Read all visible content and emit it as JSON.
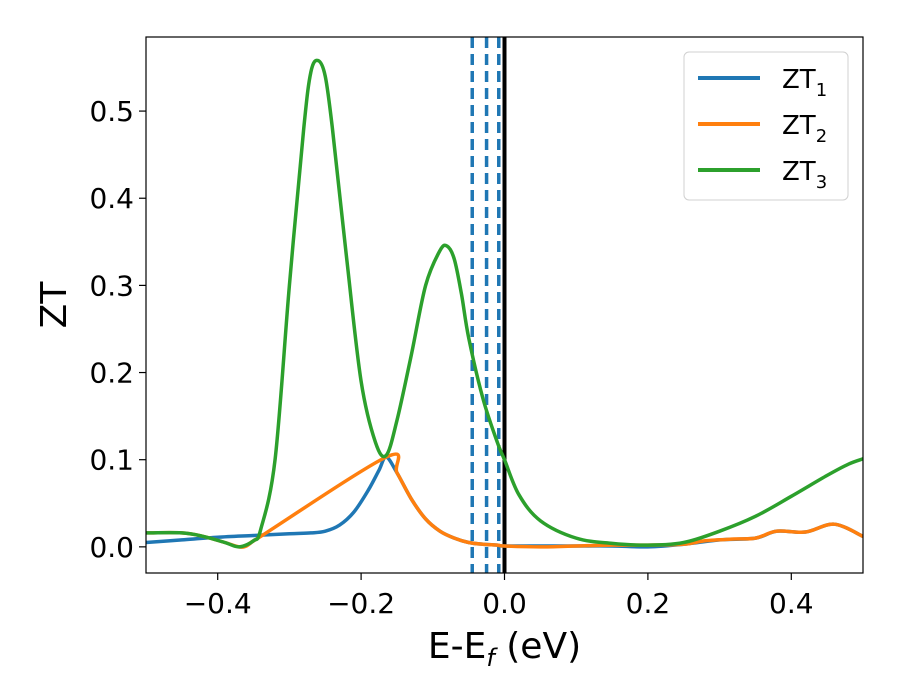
{
  "chart_data": {
    "type": "line",
    "xlabel": "E-E",
    "xlabel_sub": "f",
    "xlabel_unit": " (eV)",
    "ylabel": "ZT",
    "xlim": [
      -0.5,
      0.5
    ],
    "ylim": [
      -0.03,
      0.585
    ],
    "grid": false,
    "legend_position": "top-right",
    "x_ticks": [
      -0.4,
      -0.2,
      0.0,
      0.2,
      0.4
    ],
    "x_tick_labels": [
      "−0.4",
      "−0.2",
      "0.0",
      "0.2",
      "0.4"
    ],
    "y_ticks": [
      0.0,
      0.1,
      0.2,
      0.3,
      0.4,
      0.5
    ],
    "y_tick_labels": [
      "0.0",
      "0.1",
      "0.2",
      "0.3",
      "0.4",
      "0.5"
    ],
    "vertical_lines": [
      {
        "x": -0.045,
        "style": "dashed",
        "color": "#1f77b4"
      },
      {
        "x": -0.025,
        "style": "dashed",
        "color": "#1f77b4"
      },
      {
        "x": -0.008,
        "style": "dashed",
        "color": "#1f77b4"
      },
      {
        "x": 0.0,
        "style": "solid",
        "color": "#000000"
      }
    ],
    "series": [
      {
        "name": "ZT",
        "name_sub": "1",
        "color": "#1f77b4",
        "x": [
          -0.5,
          -0.45,
          -0.4,
          -0.35,
          -0.3,
          -0.27,
          -0.25,
          -0.23,
          -0.21,
          -0.19,
          -0.175,
          -0.165,
          -0.15,
          -0.13,
          -0.11,
          -0.09,
          -0.07,
          -0.05,
          -0.03,
          -0.01,
          0.0,
          0.05,
          0.1,
          0.15,
          0.2,
          0.25,
          0.3,
          0.35,
          0.38,
          0.42,
          0.46,
          0.5
        ],
        "y": [
          0.005,
          0.008,
          0.011,
          0.013,
          0.015,
          0.016,
          0.018,
          0.025,
          0.04,
          0.065,
          0.088,
          0.103,
          0.085,
          0.055,
          0.032,
          0.018,
          0.01,
          0.005,
          0.003,
          0.002,
          0.001,
          0.001,
          0.001,
          0.001,
          0.0,
          0.003,
          0.008,
          0.01,
          0.018,
          0.017,
          0.026,
          0.012
        ]
      },
      {
        "name": "ZT",
        "name_sub": "2",
        "color": "#ff7f0e",
        "x": [
          -0.5,
          -0.45,
          -0.42,
          -0.39,
          -0.37,
          -0.36,
          -0.35,
          -0.34,
          -0.165,
          -0.15,
          -0.13,
          -0.11,
          -0.09,
          -0.07,
          -0.05,
          -0.03,
          -0.01,
          0.0,
          0.05,
          0.1,
          0.15,
          0.2,
          0.25,
          0.28,
          0.32,
          0.35,
          0.38,
          0.42,
          0.46,
          0.5
        ],
        "y": [
          0.016,
          0.016,
          0.012,
          0.005,
          0.0,
          0.001,
          0.007,
          0.012,
          0.103,
          0.085,
          0.055,
          0.032,
          0.018,
          0.01,
          0.005,
          0.003,
          0.002,
          0.001,
          0.0,
          0.001,
          0.002,
          0.002,
          0.003,
          0.007,
          0.009,
          0.01,
          0.018,
          0.017,
          0.026,
          0.012
        ]
      },
      {
        "name": "ZT",
        "name_sub": "3",
        "color": "#2ca02c",
        "x": [
          -0.5,
          -0.45,
          -0.42,
          -0.39,
          -0.37,
          -0.35,
          -0.34,
          -0.32,
          -0.3,
          -0.28,
          -0.27,
          -0.26,
          -0.25,
          -0.24,
          -0.22,
          -0.2,
          -0.18,
          -0.165,
          -0.15,
          -0.13,
          -0.11,
          -0.09,
          -0.08,
          -0.07,
          -0.06,
          -0.05,
          -0.03,
          -0.01,
          0.0,
          0.02,
          0.05,
          0.1,
          0.15,
          0.2,
          0.25,
          0.3,
          0.35,
          0.4,
          0.45,
          0.48,
          0.5
        ],
        "y": [
          0.016,
          0.016,
          0.012,
          0.005,
          0.0,
          0.007,
          0.02,
          0.1,
          0.3,
          0.48,
          0.545,
          0.558,
          0.54,
          0.48,
          0.33,
          0.19,
          0.12,
          0.105,
          0.145,
          0.22,
          0.3,
          0.34,
          0.345,
          0.33,
          0.29,
          0.24,
          0.17,
          0.12,
          0.1,
          0.06,
          0.03,
          0.01,
          0.004,
          0.002,
          0.005,
          0.018,
          0.035,
          0.058,
          0.082,
          0.095,
          0.101
        ]
      }
    ]
  }
}
